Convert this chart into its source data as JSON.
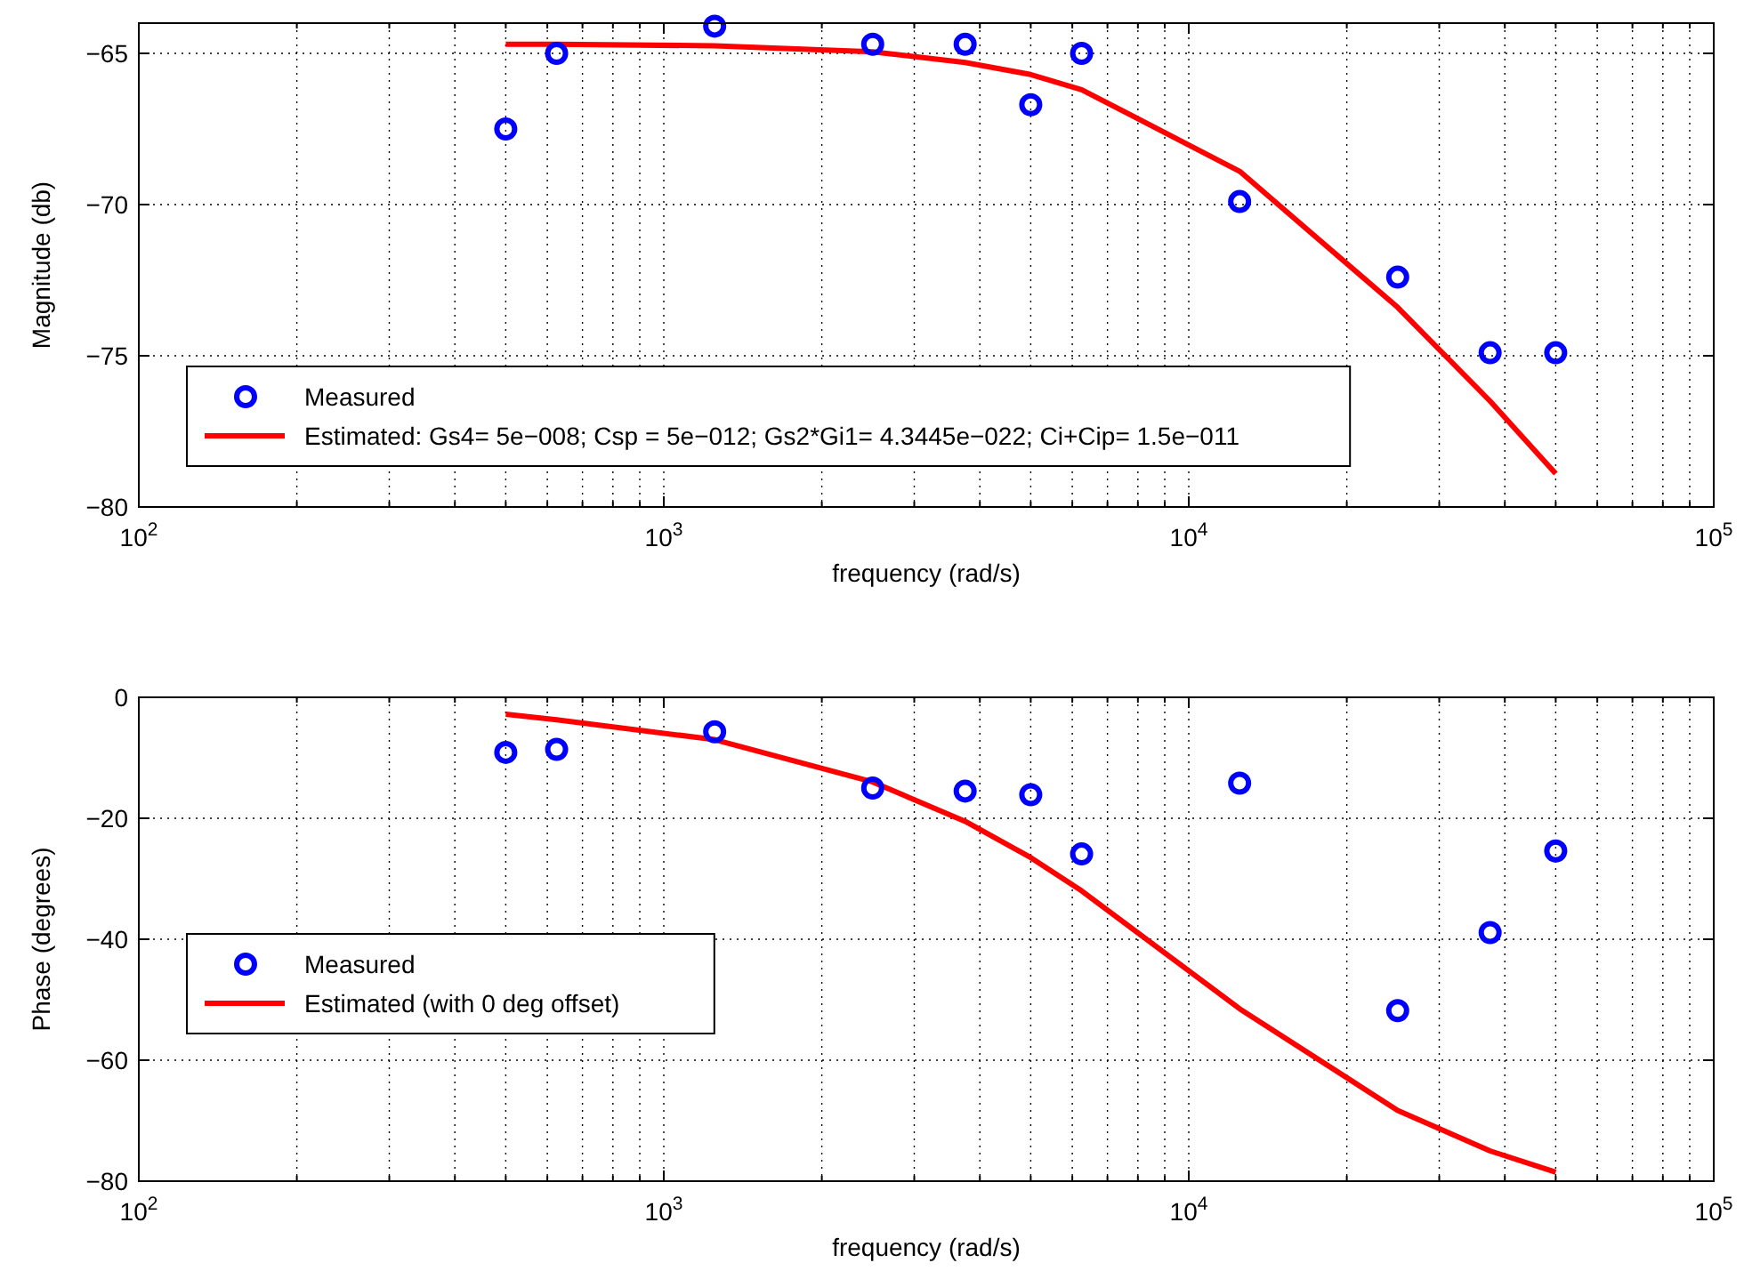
{
  "chart_data": [
    {
      "type": "scatter",
      "xlabel": "frequency (rad/s)",
      "ylabel": "Magnitude (db)",
      "log": "x",
      "grid": true,
      "legend": "bottom left",
      "x": [
        500,
        625,
        1250,
        2500,
        3750,
        5000,
        6250,
        12500,
        25000,
        37500,
        50000
      ],
      "xlim": [
        100,
        100000
      ],
      "ylim": [
        -80,
        -64
      ],
      "xticks": [
        {
          "value": 100,
          "label": "10$^{2}$"
        },
        {
          "value": 200,
          "label": null
        },
        {
          "value": 300,
          "label": null
        },
        {
          "value": 400,
          "label": null
        },
        {
          "value": 500,
          "label": null
        },
        {
          "value": 600,
          "label": null
        },
        {
          "value": 700,
          "label": null
        },
        {
          "value": 800,
          "label": null
        },
        {
          "value": 900,
          "label": null
        },
        {
          "value": 1000,
          "label": "10$^{3}$"
        },
        {
          "value": 2000,
          "label": null
        },
        {
          "value": 3000,
          "label": null
        },
        {
          "value": 4000,
          "label": null
        },
        {
          "value": 5000,
          "label": null
        },
        {
          "value": 6000,
          "label": null
        },
        {
          "value": 7000,
          "label": null
        },
        {
          "value": 8000,
          "label": null
        },
        {
          "value": 9000,
          "label": null
        },
        {
          "value": 10000,
          "label": "10$^{4}$"
        },
        {
          "value": 20000,
          "label": null
        },
        {
          "value": 30000,
          "label": null
        },
        {
          "value": 40000,
          "label": null
        },
        {
          "value": 50000,
          "label": null
        },
        {
          "value": 60000,
          "label": null
        },
        {
          "value": 70000,
          "label": null
        },
        {
          "value": 80000,
          "label": null
        },
        {
          "value": 90000,
          "label": null
        },
        {
          "value": 100000,
          "label": "10$^{5}$"
        }
      ],
      "yticks": [
        -80,
        -75,
        -70,
        -65
      ],
      "series": [
        {
          "name": "Measured",
          "marker": "circle",
          "color": "#0000ff",
          "values": [
            -67.5,
            -65.0,
            -64.1,
            -64.7,
            -64.7,
            -66.7,
            -65.0,
            -69.9,
            -72.4,
            -74.9,
            -74.9
          ]
        },
        {
          "name": "Estimated: Gs4= 5e−008; Csp = 5e−012; Gs2*Gi1= 4.3445e−022; Ci+Cip= 1.5e−011",
          "type": "line",
          "line_style": "solid",
          "color": "#ff0000",
          "values": [
            -64.7,
            -64.7,
            -64.75,
            -64.95,
            -65.3,
            -65.7,
            -66.2,
            -68.9,
            -73.4,
            -76.5,
            -78.9
          ]
        }
      ]
    },
    {
      "type": "scatter",
      "xlabel": "frequency (rad/s)",
      "ylabel": "Phase (degrees)",
      "log": "x",
      "grid": true,
      "legend": "left",
      "x": [
        500,
        625,
        1250,
        2500,
        3750,
        5000,
        6250,
        12500,
        25000,
        37500,
        50000
      ],
      "xlim": [
        100,
        100000
      ],
      "ylim": [
        -80,
        0
      ],
      "xticks": [
        {
          "value": 100,
          "label": "10$^{2}$"
        },
        {
          "value": 200,
          "label": null
        },
        {
          "value": 300,
          "label": null
        },
        {
          "value": 400,
          "label": null
        },
        {
          "value": 500,
          "label": null
        },
        {
          "value": 600,
          "label": null
        },
        {
          "value": 700,
          "label": null
        },
        {
          "value": 800,
          "label": null
        },
        {
          "value": 900,
          "label": null
        },
        {
          "value": 1000,
          "label": "10$^{3}$"
        },
        {
          "value": 2000,
          "label": null
        },
        {
          "value": 3000,
          "label": null
        },
        {
          "value": 4000,
          "label": null
        },
        {
          "value": 5000,
          "label": null
        },
        {
          "value": 6000,
          "label": null
        },
        {
          "value": 7000,
          "label": null
        },
        {
          "value": 8000,
          "label": null
        },
        {
          "value": 9000,
          "label": null
        },
        {
          "value": 10000,
          "label": "10$^{4}$"
        },
        {
          "value": 20000,
          "label": null
        },
        {
          "value": 30000,
          "label": null
        },
        {
          "value": 40000,
          "label": null
        },
        {
          "value": 50000,
          "label": null
        },
        {
          "value": 60000,
          "label": null
        },
        {
          "value": 70000,
          "label": null
        },
        {
          "value": 80000,
          "label": null
        },
        {
          "value": 90000,
          "label": null
        },
        {
          "value": 100000,
          "label": "10$^{5}$"
        }
      ],
      "yticks": [
        -80,
        -60,
        -40,
        -20,
        0
      ],
      "series": [
        {
          "name": "Measured",
          "marker": "circle",
          "color": "#0000ff",
          "values": [
            -9.1,
            -8.6,
            -5.7,
            -15.0,
            -15.5,
            -16.1,
            -25.9,
            -14.2,
            -51.8,
            -38.9,
            -25.4
          ]
        },
        {
          "name": "Estimated (with 0 deg offset)",
          "type": "line",
          "line_style": "solid",
          "color": "#ff0000",
          "values": [
            -2.8,
            -3.7,
            -7.0,
            -14.0,
            -20.5,
            -26.5,
            -32.0,
            -51.5,
            -68.3,
            -75.0,
            -78.5
          ]
        }
      ]
    }
  ]
}
